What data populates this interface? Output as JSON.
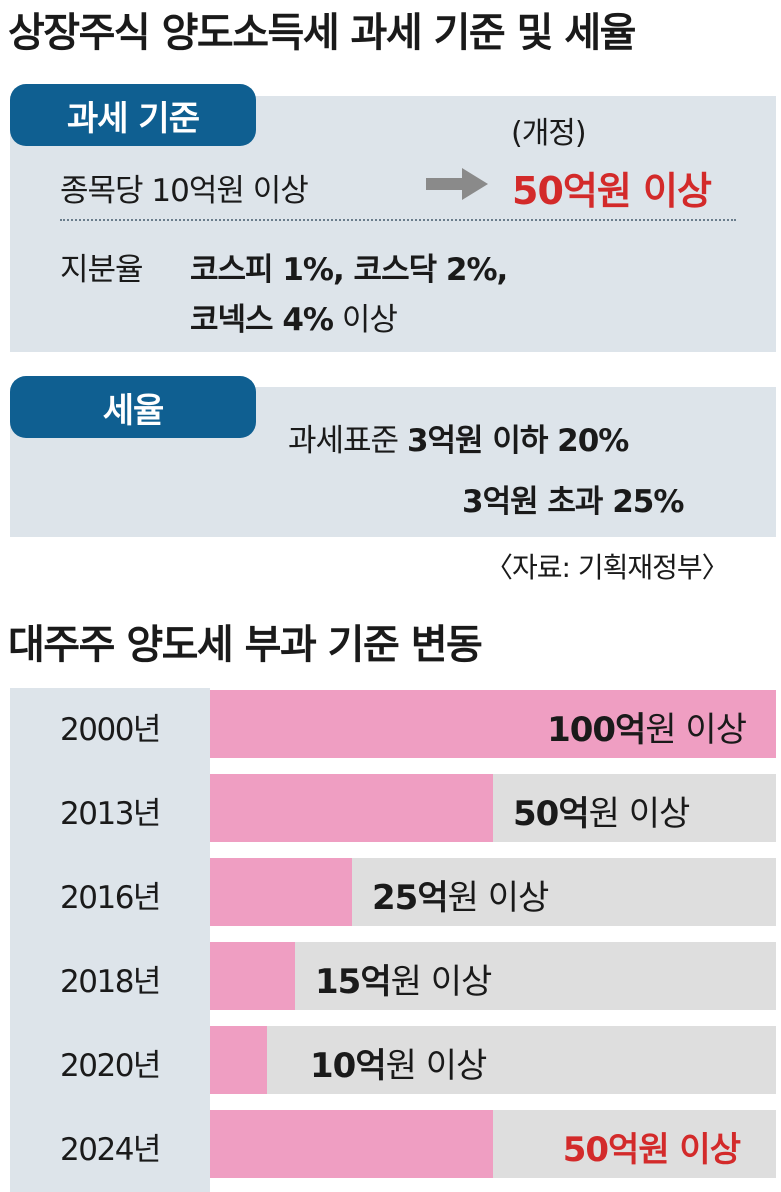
{
  "section1": {
    "title": "상장주식 양도소득세 과세 기준 및 세율",
    "criteria": {
      "tag": "과세 기준",
      "revised_label": "(개정)",
      "per_stock_label": "종목당 10억원 이상",
      "per_stock_new": "50억원 이상",
      "share_label": "지분율",
      "share_line1": "코스피 1%, 코스닥 2%,",
      "share_line2_bold": "코넥스 4%",
      "share_line2_rest": " 이상"
    },
    "tax_rate": {
      "tag": "세율",
      "line1_prefix": "과세표준 ",
      "line1_bold": "3억원 이하 20%",
      "line2_bold": "3억원 초과 25%"
    },
    "source": "〈자료: 기획재정부〉"
  },
  "section2": {
    "title": "대주주 양도세 부과 기준 변동"
  },
  "chart_data": {
    "type": "bar",
    "title": "대주주 양도세 부과 기준 변동",
    "categories": [
      "2000년",
      "2013년",
      "2016년",
      "2018년",
      "2020년",
      "2024년"
    ],
    "values": [
      100,
      50,
      25,
      15,
      10,
      50
    ],
    "labels_bold": [
      "100억",
      "50억",
      "25억",
      "15억",
      "10억",
      "50억원 이상"
    ],
    "labels_rest": [
      "원 이상",
      "원 이상",
      "원 이상",
      "원 이상",
      "원 이상",
      ""
    ],
    "highlight_index": 5,
    "unit": "억원",
    "xlim": [
      0,
      100
    ],
    "colors": {
      "bar": "#ef9ec2",
      "track": "#dedede",
      "highlight_text": "#d32a2a"
    }
  }
}
